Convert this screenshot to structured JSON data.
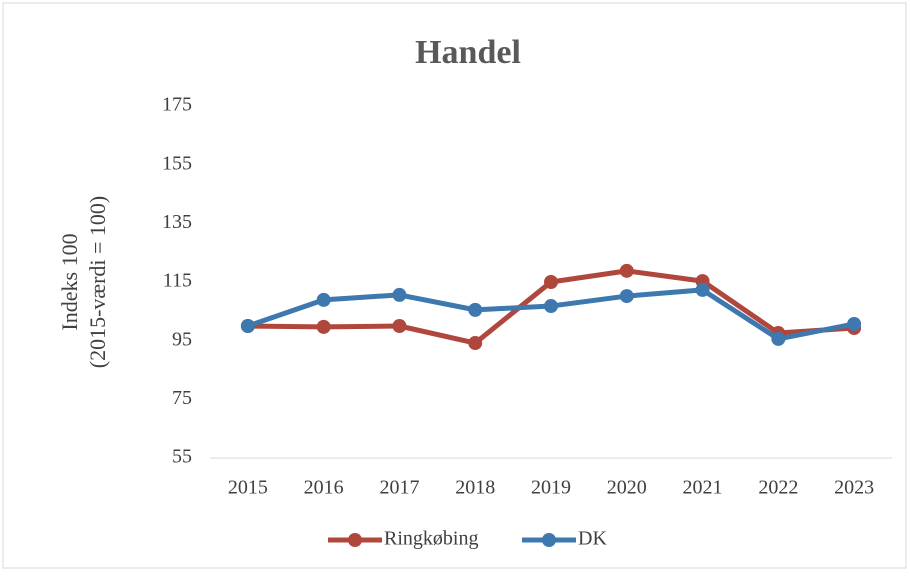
{
  "chart_data": {
    "type": "line",
    "title": "Handel",
    "ylabel": [
      "Indeks 100",
      "(2015-værdi = 100)"
    ],
    "categories": [
      "2015",
      "2016",
      "2017",
      "2018",
      "2019",
      "2020",
      "2021",
      "2022",
      "2023"
    ],
    "series": [
      {
        "name": "Ringkøbing",
        "color": "#b0473d",
        "values": [
          100,
          99.7,
          100,
          94.2,
          115,
          118.8,
          115.3,
          97.6,
          99.3
        ]
      },
      {
        "name": "DK",
        "color": "#3d78ae",
        "values": [
          100,
          108.9,
          110.6,
          105.5,
          106.8,
          110.2,
          112.3,
          95.6,
          100.7
        ]
      }
    ],
    "ylim": [
      55,
      175
    ],
    "yticks": [
      55,
      75,
      95,
      115,
      135,
      155,
      175
    ],
    "grid": false,
    "legend": "bottom"
  }
}
